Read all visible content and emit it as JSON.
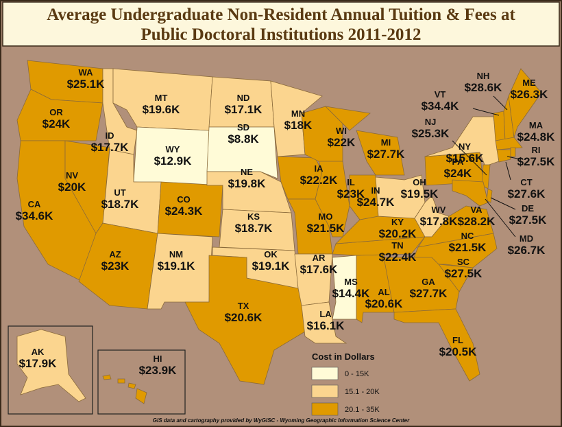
{
  "header": {
    "title_lines": [
      "Average Undergraduate Non-Resident Annual Tuition & Fees at",
      "Public Doctoral Institutions 2011-2012"
    ]
  },
  "legend": {
    "title": "Cost in Dollars",
    "items": [
      {
        "label": "0 - 15K",
        "color": "#fffbd7"
      },
      {
        "label": "15.1 - 20K",
        "color": "#fbd58f"
      },
      {
        "label": "20.1 - 35K",
        "color": "#e09a00"
      }
    ]
  },
  "states": [
    {
      "abbr": "WA",
      "cost": "$25.1K",
      "color": "#e09a00"
    },
    {
      "abbr": "OR",
      "cost": "$24K",
      "color": "#e09a00"
    },
    {
      "abbr": "CA",
      "cost": "$34.6K",
      "color": "#e09a00"
    },
    {
      "abbr": "NV",
      "cost": "$20K",
      "color": "#e09a00"
    },
    {
      "abbr": "ID",
      "cost": "$17.7K",
      "color": "#fbd58f"
    },
    {
      "abbr": "MT",
      "cost": "$19.6K",
      "color": "#fbd58f"
    },
    {
      "abbr": "WY",
      "cost": "$12.9K",
      "color": "#fffbd7"
    },
    {
      "abbr": "UT",
      "cost": "$18.7K",
      "color": "#fbd58f"
    },
    {
      "abbr": "CO",
      "cost": "$24.3K",
      "color": "#e09a00"
    },
    {
      "abbr": "AZ",
      "cost": "$23K",
      "color": "#e09a00"
    },
    {
      "abbr": "NM",
      "cost": "$19.1K",
      "color": "#fbd58f"
    },
    {
      "abbr": "ND",
      "cost": "$17.1K",
      "color": "#fbd58f"
    },
    {
      "abbr": "SD",
      "cost": "$8.8K",
      "color": "#fffbd7"
    },
    {
      "abbr": "NE",
      "cost": "$19.8K",
      "color": "#fbd58f"
    },
    {
      "abbr": "KS",
      "cost": "$18.7K",
      "color": "#fbd58f"
    },
    {
      "abbr": "OK",
      "cost": "$19.1K",
      "color": "#fbd58f"
    },
    {
      "abbr": "TX",
      "cost": "$20.6K",
      "color": "#e09a00"
    },
    {
      "abbr": "MN",
      "cost": "$18K",
      "color": "#fbd58f"
    },
    {
      "abbr": "IA",
      "cost": "$22.2K",
      "color": "#e09a00"
    },
    {
      "abbr": "MO",
      "cost": "$21.5K",
      "color": "#e09a00"
    },
    {
      "abbr": "AR",
      "cost": "$17.6K",
      "color": "#fbd58f"
    },
    {
      "abbr": "LA",
      "cost": "$16.1K",
      "color": "#fbd58f"
    },
    {
      "abbr": "WI",
      "cost": "$22K",
      "color": "#e09a00"
    },
    {
      "abbr": "IL",
      "cost": "$23K",
      "color": "#e09a00"
    },
    {
      "abbr": "MS",
      "cost": "$14.4K",
      "color": "#fffbd7"
    },
    {
      "abbr": "AL",
      "cost": "$20.6K",
      "color": "#e09a00"
    },
    {
      "abbr": "TN",
      "cost": "$22.4K",
      "color": "#e09a00"
    },
    {
      "abbr": "KY",
      "cost": "$20.2K",
      "color": "#e09a00"
    },
    {
      "abbr": "IN",
      "cost": "$24.7K",
      "color": "#e09a00"
    },
    {
      "abbr": "MI",
      "cost": "$27.7K",
      "color": "#e09a00"
    },
    {
      "abbr": "OH",
      "cost": "$19.5K",
      "color": "#fbd58f"
    },
    {
      "abbr": "WV",
      "cost": "$17.8K",
      "color": "#fbd58f"
    },
    {
      "abbr": "VA",
      "cost": "$28.2K",
      "color": "#e09a00"
    },
    {
      "abbr": "NC",
      "cost": "$21.5K",
      "color": "#e09a00"
    },
    {
      "abbr": "SC",
      "cost": "$27.5K",
      "color": "#e09a00"
    },
    {
      "abbr": "GA",
      "cost": "$27.7K",
      "color": "#e09a00"
    },
    {
      "abbr": "FL",
      "cost": "$20.5K",
      "color": "#e09a00"
    },
    {
      "abbr": "PA",
      "cost": "$24K",
      "color": "#e09a00"
    },
    {
      "abbr": "NY",
      "cost": "$15.6K",
      "color": "#fbd58f"
    },
    {
      "abbr": "NJ",
      "cost": "$25.3K",
      "color": "#e09a00"
    },
    {
      "abbr": "VT",
      "cost": "$34.4K",
      "color": "#e09a00"
    },
    {
      "abbr": "NH",
      "cost": "$28.6K",
      "color": "#e09a00"
    },
    {
      "abbr": "ME",
      "cost": "$26.3K",
      "color": "#e09a00"
    },
    {
      "abbr": "MA",
      "cost": "$24.8K",
      "color": "#e09a00"
    },
    {
      "abbr": "RI",
      "cost": "$27.5K",
      "color": "#e09a00"
    },
    {
      "abbr": "CT",
      "cost": "$27.6K",
      "color": "#e09a00"
    },
    {
      "abbr": "DE",
      "cost": "$27.5K",
      "color": "#e09a00"
    },
    {
      "abbr": "MD",
      "cost": "$26.7K",
      "color": "#e09a00"
    },
    {
      "abbr": "AK",
      "cost": "$17.9K",
      "color": "#fbd58f"
    },
    {
      "abbr": "HI",
      "cost": "$23.9K",
      "color": "#e09a00"
    }
  ],
  "footer": {
    "credit": "GIS data and cartography provided by WyGISC - Wyoming Geographic Information Science Center"
  }
}
